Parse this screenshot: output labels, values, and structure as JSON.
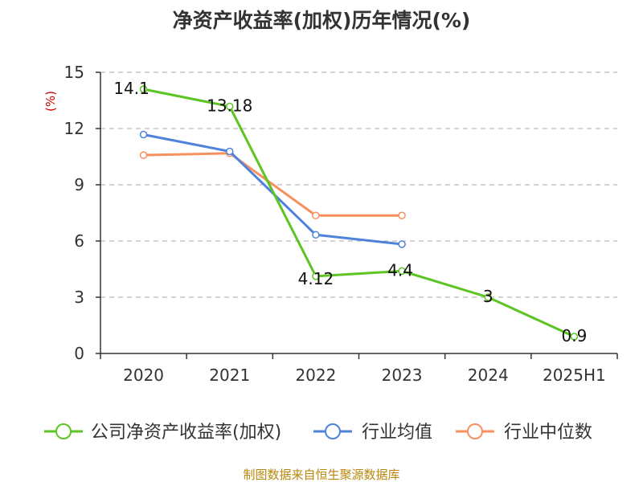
{
  "chart_data": {
    "type": "line",
    "title": "净资产收益率(加权)历年情况(%)",
    "ylabel": "(%)",
    "categories": [
      "2020",
      "2021",
      "2022",
      "2023",
      "2024",
      "2025H1"
    ],
    "yticks": [
      "0",
      "3",
      "6",
      "9",
      "12",
      "15"
    ],
    "ylim": [
      0,
      15
    ],
    "grid": true,
    "legend_position": "bottom",
    "series": [
      {
        "name": "公司净资产收益率(加权)",
        "color": "#5cc423",
        "values": [
          14.1,
          13.18,
          4.12,
          4.4,
          3,
          0.9
        ],
        "labels": [
          "14.1",
          "13.18",
          "4.12",
          "4.4",
          "3",
          "0.9"
        ]
      },
      {
        "name": "行业均值",
        "color": "#4f82db",
        "values": [
          11.68,
          10.78,
          6.33,
          5.83,
          null,
          null
        ]
      },
      {
        "name": "行业中位数",
        "color": "#f78f5f",
        "values": [
          10.58,
          10.68,
          7.36,
          7.36,
          null,
          null
        ]
      }
    ]
  },
  "source": "制图数据来自恒生聚源数据库"
}
